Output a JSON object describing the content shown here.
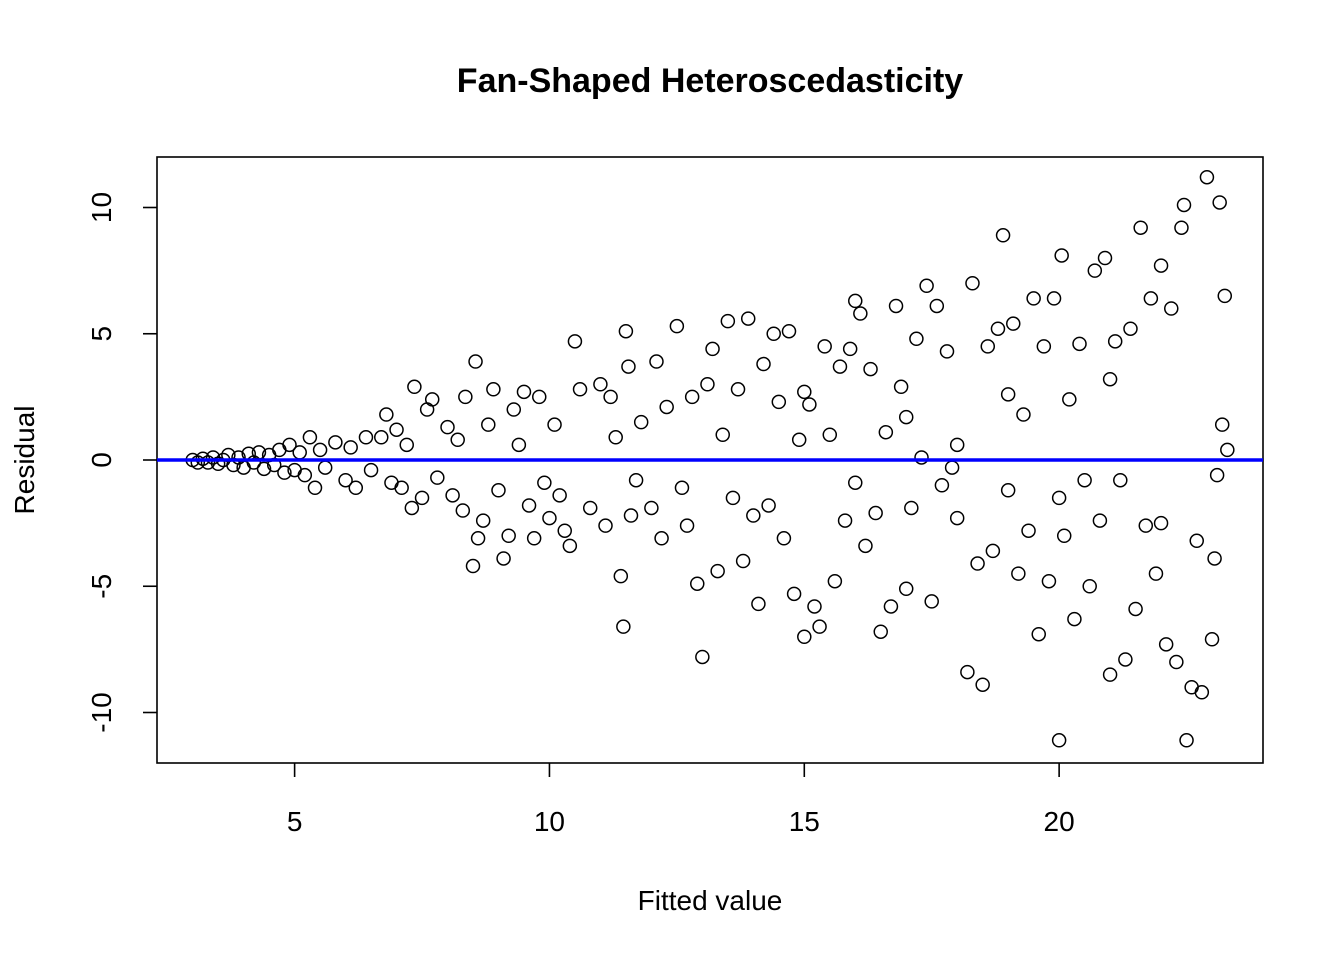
{
  "chart_data": {
    "type": "scatter",
    "title": "Fan-Shaped Heteroscedasticity",
    "xlabel": "Fitted value",
    "ylabel": "Residual",
    "xlim": [
      2.3,
      24.0
    ],
    "ylim": [
      -12.0,
      12.0
    ],
    "xticks": [
      5,
      10,
      15,
      20
    ],
    "yticks": [
      -10,
      -5,
      0,
      5,
      10
    ],
    "xtick_labels": [
      "5",
      "10",
      "15",
      "20"
    ],
    "ytick_labels": [
      "-10",
      "-5",
      "0",
      "5",
      "10"
    ],
    "reference_line": {
      "y": 0,
      "color": "#0000ff"
    },
    "marker": "open-circle",
    "point_color": "#000000",
    "grid": false,
    "legend": "none",
    "points": [
      [
        3.0,
        0.0
      ],
      [
        3.1,
        -0.1
      ],
      [
        3.2,
        0.05
      ],
      [
        3.3,
        -0.1
      ],
      [
        3.4,
        0.1
      ],
      [
        3.5,
        -0.15
      ],
      [
        3.6,
        0.0
      ],
      [
        3.7,
        0.2
      ],
      [
        3.8,
        -0.2
      ],
      [
        3.9,
        0.1
      ],
      [
        4.0,
        -0.3
      ],
      [
        4.1,
        0.25
      ],
      [
        4.2,
        -0.1
      ],
      [
        4.3,
        0.3
      ],
      [
        4.4,
        -0.35
      ],
      [
        4.5,
        0.2
      ],
      [
        4.6,
        -0.2
      ],
      [
        4.7,
        0.4
      ],
      [
        4.8,
        -0.5
      ],
      [
        4.9,
        0.6
      ],
      [
        5.0,
        -0.4
      ],
      [
        5.1,
        0.3
      ],
      [
        5.2,
        -0.6
      ],
      [
        5.3,
        0.9
      ],
      [
        5.4,
        -1.1
      ],
      [
        5.5,
        0.4
      ],
      [
        5.6,
        -0.3
      ],
      [
        5.8,
        0.7
      ],
      [
        6.0,
        -0.8
      ],
      [
        6.1,
        0.5
      ],
      [
        6.2,
        -1.1
      ],
      [
        6.4,
        0.9
      ],
      [
        6.5,
        -0.4
      ],
      [
        6.7,
        0.9
      ],
      [
        6.8,
        1.8
      ],
      [
        6.9,
        -0.9
      ],
      [
        7.0,
        1.2
      ],
      [
        7.1,
        -1.1
      ],
      [
        7.2,
        0.6
      ],
      [
        7.3,
        -1.9
      ],
      [
        7.35,
        2.9
      ],
      [
        7.5,
        -1.5
      ],
      [
        7.6,
        2.0
      ],
      [
        7.7,
        2.4
      ],
      [
        7.8,
        -0.7
      ],
      [
        8.0,
        1.3
      ],
      [
        8.1,
        -1.4
      ],
      [
        8.2,
        0.8
      ],
      [
        8.3,
        -2.0
      ],
      [
        8.35,
        2.5
      ],
      [
        8.5,
        -4.2
      ],
      [
        8.55,
        3.9
      ],
      [
        8.6,
        -3.1
      ],
      [
        8.7,
        -2.4
      ],
      [
        8.8,
        1.4
      ],
      [
        8.9,
        2.8
      ],
      [
        9.0,
        -1.2
      ],
      [
        9.1,
        -3.9
      ],
      [
        9.2,
        -3.0
      ],
      [
        9.3,
        2.0
      ],
      [
        9.4,
        0.6
      ],
      [
        9.5,
        2.7
      ],
      [
        9.6,
        -1.8
      ],
      [
        9.7,
        -3.1
      ],
      [
        9.8,
        2.5
      ],
      [
        9.9,
        -0.9
      ],
      [
        10.0,
        -2.3
      ],
      [
        10.1,
        1.4
      ],
      [
        10.2,
        -1.4
      ],
      [
        10.3,
        -2.8
      ],
      [
        10.4,
        -3.4
      ],
      [
        10.5,
        4.7
      ],
      [
        10.6,
        2.8
      ],
      [
        10.8,
        -1.9
      ],
      [
        11.0,
        3.0
      ],
      [
        11.1,
        -2.6
      ],
      [
        11.2,
        2.5
      ],
      [
        11.3,
        0.9
      ],
      [
        11.4,
        -4.6
      ],
      [
        11.45,
        -6.6
      ],
      [
        11.5,
        5.1
      ],
      [
        11.55,
        3.7
      ],
      [
        11.6,
        -2.2
      ],
      [
        11.7,
        -0.8
      ],
      [
        11.8,
        1.5
      ],
      [
        12.0,
        -1.9
      ],
      [
        12.1,
        3.9
      ],
      [
        12.2,
        -3.1
      ],
      [
        12.3,
        2.1
      ],
      [
        12.5,
        5.3
      ],
      [
        12.6,
        -1.1
      ],
      [
        12.7,
        -2.6
      ],
      [
        12.8,
        2.5
      ],
      [
        12.9,
        -4.9
      ],
      [
        13.0,
        -7.8
      ],
      [
        13.1,
        3.0
      ],
      [
        13.2,
        4.4
      ],
      [
        13.3,
        -4.4
      ],
      [
        13.4,
        1.0
      ],
      [
        13.5,
        5.5
      ],
      [
        13.6,
        -1.5
      ],
      [
        13.7,
        2.8
      ],
      [
        13.8,
        -4.0
      ],
      [
        13.9,
        5.6
      ],
      [
        14.0,
        -2.2
      ],
      [
        14.1,
        -5.7
      ],
      [
        14.2,
        3.8
      ],
      [
        14.3,
        -1.8
      ],
      [
        14.4,
        5.0
      ],
      [
        14.5,
        2.3
      ],
      [
        14.6,
        -3.1
      ],
      [
        14.7,
        5.1
      ],
      [
        14.8,
        -5.3
      ],
      [
        14.9,
        0.8
      ],
      [
        15.0,
        -7.0
      ],
      [
        15.1,
        2.2
      ],
      [
        15.2,
        -5.8
      ],
      [
        15.3,
        -6.6
      ],
      [
        15.4,
        4.5
      ],
      [
        15.5,
        1.0
      ],
      [
        15.6,
        -4.8
      ],
      [
        15.7,
        3.7
      ],
      [
        15.8,
        -2.4
      ],
      [
        15.9,
        4.4
      ],
      [
        16.0,
        6.3
      ],
      [
        16.1,
        5.8
      ],
      [
        16.2,
        -3.4
      ],
      [
        16.3,
        3.6
      ],
      [
        16.4,
        -2.1
      ],
      [
        16.5,
        -6.8
      ],
      [
        16.6,
        1.1
      ],
      [
        16.7,
        -5.8
      ],
      [
        16.8,
        6.1
      ],
      [
        16.9,
        2.9
      ],
      [
        17.0,
        -5.1
      ],
      [
        17.1,
        -1.9
      ],
      [
        17.2,
        4.8
      ],
      [
        17.3,
        0.1
      ],
      [
        17.4,
        6.9
      ],
      [
        17.5,
        -5.6
      ],
      [
        17.6,
        6.1
      ],
      [
        17.7,
        -1.0
      ],
      [
        17.8,
        4.3
      ],
      [
        17.9,
        -0.3
      ],
      [
        18.0,
        0.6
      ],
      [
        18.2,
        -8.4
      ],
      [
        18.3,
        7.0
      ],
      [
        18.4,
        -4.1
      ],
      [
        18.5,
        -8.9
      ],
      [
        18.6,
        4.5
      ],
      [
        18.7,
        -3.6
      ],
      [
        18.8,
        5.2
      ],
      [
        18.9,
        8.9
      ],
      [
        19.0,
        -1.2
      ],
      [
        19.1,
        5.4
      ],
      [
        19.2,
        -4.5
      ],
      [
        19.3,
        1.8
      ],
      [
        19.4,
        -2.8
      ],
      [
        19.5,
        6.4
      ],
      [
        19.6,
        -6.9
      ],
      [
        19.7,
        4.5
      ],
      [
        19.8,
        -4.8
      ],
      [
        19.9,
        6.4
      ],
      [
        20.0,
        -11.1
      ],
      [
        20.05,
        8.1
      ],
      [
        20.1,
        -3.0
      ],
      [
        20.2,
        2.4
      ],
      [
        20.3,
        -6.3
      ],
      [
        20.4,
        4.6
      ],
      [
        20.5,
        -0.8
      ],
      [
        20.6,
        -5.0
      ],
      [
        20.7,
        7.5
      ],
      [
        20.8,
        -2.4
      ],
      [
        20.9,
        8.0
      ],
      [
        21.0,
        -8.5
      ],
      [
        21.1,
        4.7
      ],
      [
        21.2,
        -0.8
      ],
      [
        21.3,
        -7.9
      ],
      [
        21.4,
        5.2
      ],
      [
        21.5,
        -5.9
      ],
      [
        21.6,
        9.2
      ],
      [
        21.7,
        -2.6
      ],
      [
        21.8,
        6.4
      ],
      [
        21.9,
        -4.5
      ],
      [
        22.0,
        7.7
      ],
      [
        22.1,
        -7.3
      ],
      [
        22.2,
        6.0
      ],
      [
        22.3,
        -8.0
      ],
      [
        22.4,
        9.2
      ],
      [
        22.45,
        10.1
      ],
      [
        22.5,
        -11.1
      ],
      [
        22.6,
        -9.0
      ],
      [
        22.7,
        -3.2
      ],
      [
        22.8,
        -9.2
      ],
      [
        22.9,
        11.2
      ],
      [
        23.0,
        -7.1
      ],
      [
        23.05,
        -3.9
      ],
      [
        23.1,
        -0.6
      ],
      [
        23.15,
        10.2
      ],
      [
        23.2,
        1.4
      ],
      [
        23.25,
        6.5
      ],
      [
        23.3,
        0.4
      ],
      [
        22.0,
        -2.5
      ],
      [
        21.0,
        3.2
      ],
      [
        20.0,
        -1.5
      ],
      [
        19.0,
        2.6
      ],
      [
        18.0,
        -2.3
      ],
      [
        17.0,
        1.7
      ],
      [
        16.0,
        -0.9
      ],
      [
        15.0,
        2.7
      ]
    ]
  }
}
